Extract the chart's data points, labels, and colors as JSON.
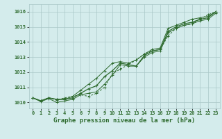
{
  "title": "Graphe pression niveau de la mer (hPa)",
  "x_values": [
    0,
    1,
    2,
    3,
    4,
    5,
    6,
    7,
    8,
    9,
    10,
    11,
    12,
    13,
    14,
    15,
    16,
    17,
    18,
    19,
    20,
    21,
    22,
    23
  ],
  "line_main": [
    1010.3,
    1010.1,
    1010.3,
    1010.2,
    1010.2,
    1010.3,
    1010.6,
    1010.9,
    1011.1,
    1011.7,
    1012.1,
    1012.6,
    1012.5,
    1012.4,
    1013.1,
    1013.4,
    1013.5,
    1014.7,
    1015.0,
    1015.2,
    1015.3,
    1015.5,
    1015.6,
    1016.0
  ],
  "line_upper": [
    1010.3,
    1010.1,
    1010.3,
    1010.2,
    1010.2,
    1010.4,
    1010.8,
    1011.2,
    1011.6,
    1012.1,
    1012.6,
    1012.7,
    1012.6,
    1012.8,
    1013.2,
    1013.5,
    1013.6,
    1014.9,
    1015.1,
    1015.3,
    1015.5,
    1015.6,
    1015.7,
    1016.0
  ],
  "line_lower": [
    1010.3,
    1010.05,
    1010.25,
    1010.0,
    1010.1,
    1010.2,
    1010.5,
    1010.6,
    1010.7,
    1011.2,
    1011.8,
    1012.5,
    1012.4,
    1012.4,
    1013.0,
    1013.3,
    1013.4,
    1014.6,
    1014.9,
    1015.1,
    1015.2,
    1015.4,
    1015.5,
    1015.9
  ],
  "line_dotted": [
    1010.3,
    1010.1,
    1010.3,
    1010.15,
    1010.3,
    1010.4,
    1010.5,
    1010.4,
    1010.6,
    1011.0,
    1011.9,
    1012.2,
    1012.5,
    1012.8,
    1013.2,
    1013.4,
    1013.5,
    1014.4,
    1014.9,
    1015.1,
    1015.2,
    1015.5,
    1015.8,
    1016.0
  ],
  "line_color": "#2d6a2d",
  "bg_color": "#d4ecec",
  "grid_color": "#aac8c8",
  "ylim_min": 1009.6,
  "ylim_max": 1016.5,
  "yticks": [
    1010,
    1011,
    1012,
    1013,
    1014,
    1015,
    1016
  ],
  "xticks": [
    0,
    1,
    2,
    3,
    4,
    5,
    6,
    7,
    8,
    9,
    10,
    11,
    12,
    13,
    14,
    15,
    16,
    17,
    18,
    19,
    20,
    21,
    22,
    23
  ],
  "title_fontsize": 6.5,
  "tick_fontsize": 5.0,
  "marker_size": 2.0,
  "line_width": 0.7
}
